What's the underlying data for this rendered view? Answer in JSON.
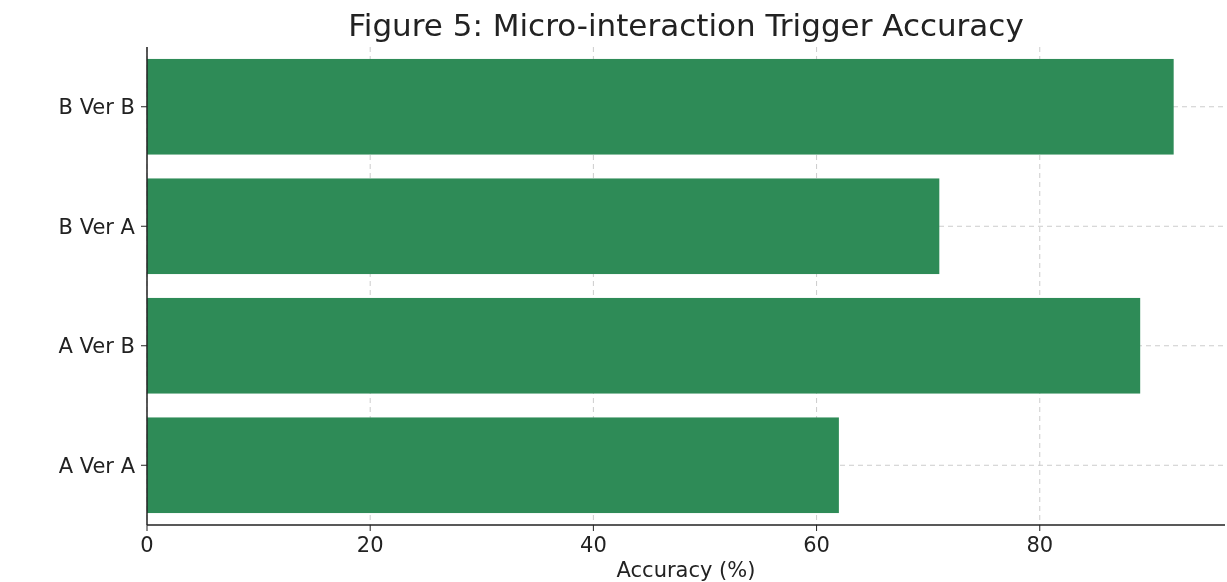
{
  "chart_data": {
    "type": "bar",
    "orientation": "horizontal",
    "title": "Figure 5: Micro-interaction Trigger Accuracy",
    "xlabel": "Accuracy (%)",
    "categories": [
      "B Ver B",
      "B Ver A",
      "A Ver B",
      "A Ver A"
    ],
    "values": [
      92,
      71,
      89,
      62
    ],
    "color": "#2e8b57",
    "xlim": [
      0,
      96.6
    ],
    "xticks": [
      0,
      20,
      40,
      60,
      80
    ],
    "grid": true
  }
}
